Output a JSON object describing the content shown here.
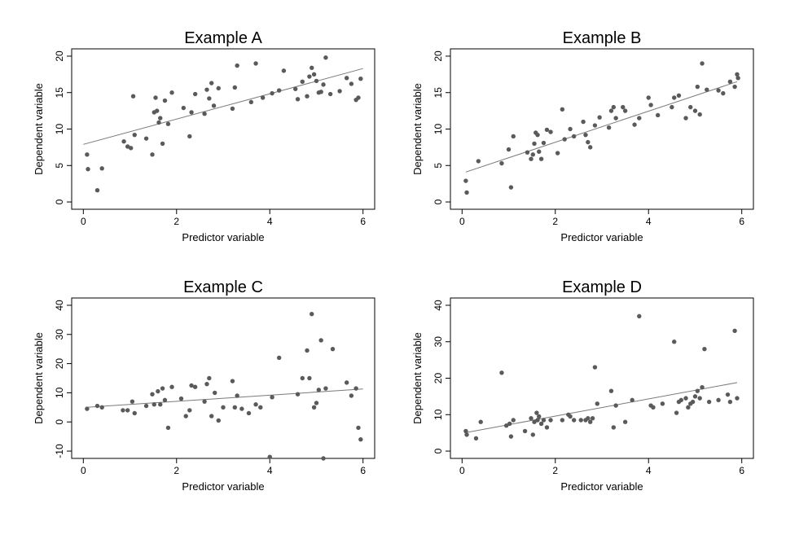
{
  "chart_data": [
    {
      "type": "scatter",
      "title": "Example A",
      "xlabel": "Predictor variable",
      "ylabel": "Dependent variable",
      "xlim": [
        0,
        6
      ],
      "ylim": [
        0,
        20
      ],
      "xticks": [
        0,
        2,
        4,
        6
      ],
      "yticks": [
        0,
        5,
        10,
        15,
        20
      ],
      "fit": [
        [
          0,
          7.9
        ],
        [
          6,
          18.3
        ]
      ],
      "x": [
        0.08,
        0.1,
        0.3,
        0.4,
        0.87,
        0.95,
        1.02,
        1.07,
        1.1,
        1.35,
        1.48,
        1.52,
        1.55,
        1.58,
        1.62,
        1.65,
        1.7,
        1.75,
        1.82,
        1.9,
        2.15,
        2.28,
        2.32,
        2.4,
        2.6,
        2.65,
        2.7,
        2.75,
        2.8,
        2.9,
        3.2,
        3.25,
        3.3,
        3.6,
        3.7,
        3.85,
        4.05,
        4.2,
        4.3,
        4.55,
        4.6,
        4.7,
        4.8,
        4.85,
        4.9,
        4.95,
        5.0,
        5.05,
        5.1,
        5.15,
        5.2,
        5.3,
        5.5,
        5.65,
        5.75,
        5.85,
        5.9,
        5.95
      ],
      "y": [
        6.5,
        4.5,
        1.6,
        4.6,
        8.3,
        7.6,
        7.4,
        14.5,
        9.2,
        8.7,
        6.5,
        12.3,
        14.3,
        12.5,
        10.9,
        11.5,
        8.0,
        13.9,
        10.7,
        15.0,
        12.9,
        9.0,
        12.3,
        14.8,
        12.1,
        15.4,
        14.2,
        16.3,
        13.2,
        15.6,
        12.8,
        15.7,
        18.7,
        13.7,
        19.0,
        14.3,
        14.9,
        15.3,
        18.0,
        15.5,
        14.1,
        16.5,
        14.5,
        17.2,
        18.4,
        17.5,
        16.6,
        15.0,
        15.1,
        16.1,
        19.8,
        14.8,
        15.2,
        17.0,
        16.2,
        14.0,
        14.3,
        16.9
      ]
    },
    {
      "type": "scatter",
      "title": "Example B",
      "xlabel": "Predictor variable",
      "ylabel": "Dependent variable",
      "xlim": [
        0,
        6
      ],
      "ylim": [
        0,
        20
      ],
      "xticks": [
        0,
        2,
        4,
        6
      ],
      "yticks": [
        0,
        5,
        10,
        15,
        20
      ],
      "fit": [
        [
          0.08,
          4.1
        ],
        [
          5.9,
          16.5
        ]
      ],
      "x": [
        0.08,
        0.1,
        0.35,
        0.85,
        1.0,
        1.05,
        1.1,
        1.4,
        1.48,
        1.52,
        1.55,
        1.58,
        1.62,
        1.65,
        1.7,
        1.75,
        1.82,
        1.9,
        2.05,
        2.15,
        2.2,
        2.32,
        2.4,
        2.6,
        2.65,
        2.7,
        2.75,
        2.85,
        2.95,
        3.15,
        3.2,
        3.25,
        3.3,
        3.45,
        3.5,
        3.7,
        3.8,
        4.0,
        4.05,
        4.2,
        4.5,
        4.55,
        4.65,
        4.8,
        4.9,
        5.0,
        5.05,
        5.1,
        5.15,
        5.25,
        5.5,
        5.6,
        5.75,
        5.85,
        5.9,
        5.92
      ],
      "y": [
        2.9,
        1.3,
        5.6,
        5.3,
        7.2,
        2.0,
        9.0,
        6.8,
        5.9,
        6.5,
        8.0,
        9.5,
        9.2,
        6.9,
        5.9,
        8.1,
        9.9,
        9.6,
        6.7,
        12.7,
        8.6,
        10.0,
        9.0,
        11.0,
        9.2,
        8.2,
        7.5,
        10.5,
        11.6,
        10.2,
        12.5,
        13.0,
        11.5,
        13.0,
        12.5,
        10.6,
        11.5,
        14.3,
        13.3,
        11.9,
        13.0,
        14.3,
        14.6,
        11.5,
        13.0,
        12.5,
        15.8,
        12.0,
        19.0,
        15.4,
        15.3,
        14.9,
        16.5,
        15.8,
        17.5,
        17.0
      ]
    },
    {
      "type": "scatter",
      "title": "Example C",
      "xlabel": "Predictor variable",
      "ylabel": "Dependent variable",
      "xlim": [
        0,
        6
      ],
      "ylim": [
        -10,
        40
      ],
      "xticks": [
        0,
        2,
        4,
        6
      ],
      "yticks": [
        -10,
        0,
        10,
        20,
        30,
        40
      ],
      "fit": [
        [
          0.05,
          5.0
        ],
        [
          6,
          11.3
        ]
      ],
      "x": [
        0.08,
        0.3,
        0.4,
        0.85,
        0.95,
        1.05,
        1.1,
        1.35,
        1.48,
        1.52,
        1.6,
        1.65,
        1.7,
        1.75,
        1.82,
        1.9,
        2.1,
        2.2,
        2.28,
        2.32,
        2.4,
        2.6,
        2.65,
        2.7,
        2.75,
        2.82,
        2.9,
        3.0,
        3.2,
        3.25,
        3.3,
        3.4,
        3.55,
        3.7,
        3.8,
        4.0,
        4.05,
        4.2,
        4.6,
        4.7,
        4.8,
        4.85,
        4.9,
        4.95,
        5.0,
        5.05,
        5.1,
        5.15,
        5.2,
        5.35,
        5.65,
        5.75,
        5.85,
        5.9,
        5.95
      ],
      "y": [
        4.5,
        5.5,
        5.0,
        4.0,
        4.0,
        7.0,
        3.0,
        5.5,
        9.5,
        6.0,
        10.5,
        6.0,
        11.5,
        7.5,
        -2.0,
        12.0,
        8.0,
        2.0,
        4.0,
        12.5,
        12.0,
        7.0,
        13.0,
        15.0,
        2.0,
        10.0,
        0.5,
        5.0,
        14.0,
        5.0,
        9.0,
        4.5,
        3.0,
        6.0,
        5.0,
        -12.0,
        8.5,
        22.0,
        9.5,
        15.0,
        24.5,
        15.0,
        37.0,
        5.0,
        6.5,
        11.0,
        28.0,
        -12.5,
        11.5,
        25.0,
        13.5,
        9.0,
        11.5,
        -2.0,
        -6.0
      ]
    },
    {
      "type": "scatter",
      "title": "Example D",
      "xlabel": "Predictor variable",
      "ylabel": "Dependent variable",
      "xlim": [
        0,
        6
      ],
      "ylim": [
        0,
        40
      ],
      "xticks": [
        0,
        2,
        4,
        6
      ],
      "yticks": [
        0,
        10,
        20,
        30,
        40
      ],
      "fit": [
        [
          0.05,
          5.0
        ],
        [
          5.9,
          18.8
        ]
      ],
      "x": [
        0.08,
        0.1,
        0.3,
        0.4,
        0.85,
        0.95,
        1.02,
        1.05,
        1.1,
        1.35,
        1.48,
        1.52,
        1.55,
        1.6,
        1.62,
        1.65,
        1.7,
        1.75,
        1.82,
        1.9,
        2.15,
        2.28,
        2.32,
        2.4,
        2.55,
        2.65,
        2.7,
        2.75,
        2.8,
        2.85,
        2.9,
        3.2,
        3.25,
        3.3,
        3.5,
        3.65,
        3.8,
        4.05,
        4.1,
        4.3,
        4.55,
        4.6,
        4.65,
        4.7,
        4.8,
        4.85,
        4.9,
        4.95,
        5.0,
        5.05,
        5.1,
        5.15,
        5.2,
        5.3,
        5.5,
        5.7,
        5.75,
        5.85,
        5.9
      ],
      "y": [
        5.5,
        4.5,
        3.5,
        8.0,
        21.5,
        7.0,
        7.5,
        4.0,
        8.5,
        5.5,
        9.0,
        4.5,
        8.0,
        10.5,
        8.5,
        9.5,
        7.5,
        8.5,
        6.5,
        8.5,
        8.5,
        10.0,
        9.5,
        8.5,
        8.5,
        8.5,
        9.0,
        8.0,
        9.0,
        23.0,
        13.0,
        16.5,
        6.5,
        12.5,
        8.0,
        14.0,
        37.0,
        12.5,
        12.0,
        13.0,
        30.0,
        10.5,
        13.5,
        14.0,
        14.5,
        12.0,
        13.0,
        13.5,
        15.0,
        16.5,
        14.5,
        17.5,
        28.0,
        13.5,
        14.0,
        15.5,
        13.5,
        33.0,
        14.5
      ]
    }
  ]
}
